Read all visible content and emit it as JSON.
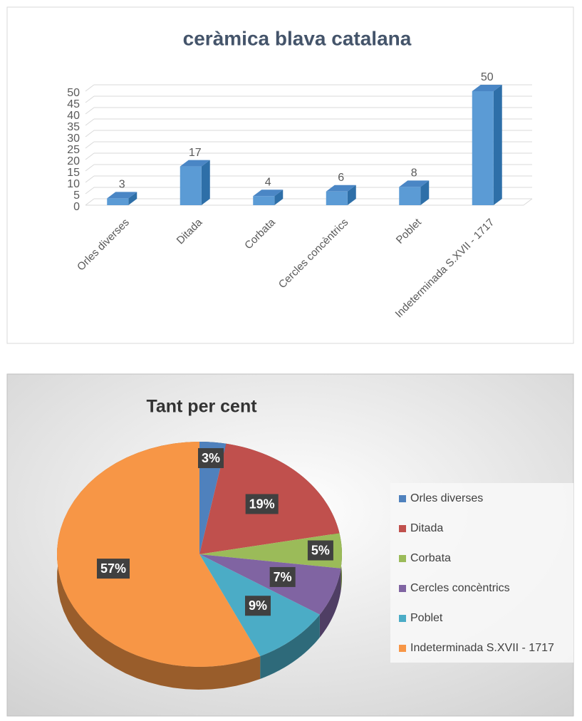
{
  "chart_data": [
    {
      "type": "bar3d",
      "title": "ceràmica blava catalana",
      "categories": [
        "Orles diverses",
        "Ditada",
        "Corbata",
        "Cercles concèntrics",
        "Poblet",
        "Indeterminada S.XVII - 1717"
      ],
      "values": [
        3,
        17,
        4,
        6,
        8,
        50
      ],
      "color": "#5b9bd5",
      "ylim": [
        0,
        50
      ],
      "yticks": [
        0,
        5,
        10,
        15,
        20,
        25,
        30,
        35,
        40,
        45,
        50
      ],
      "grid": true
    },
    {
      "type": "pie3d",
      "title": "Tant per cent",
      "categories": [
        "Orles diverses",
        "Ditada",
        "Corbata",
        "Cercles concèntrics",
        "Poblet",
        "Indeterminada S.XVII - 1717"
      ],
      "values": [
        3,
        19,
        5,
        7,
        9,
        57
      ],
      "value_labels": [
        "3%",
        "19%",
        "5%",
        "7%",
        "9%",
        "57%"
      ],
      "colors": [
        "#4f81bd",
        "#c0504d",
        "#9bbb59",
        "#8064a2",
        "#4bacc6",
        "#f79646"
      ],
      "legend": "right"
    }
  ]
}
